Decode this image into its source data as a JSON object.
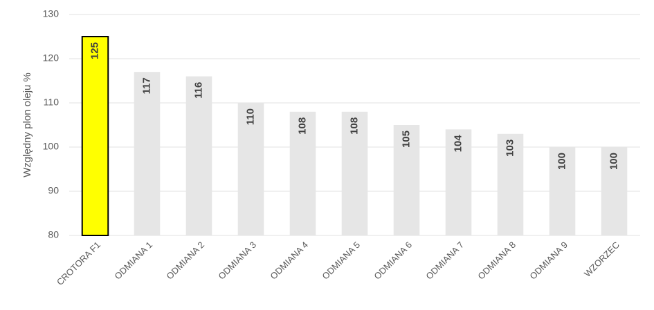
{
  "chart_data": {
    "type": "bar",
    "ylabel": "Względny plon oleju %",
    "categories": [
      "CROTORA F1",
      "ODMIANA 1",
      "ODMIANA 2",
      "ODMIANA 3",
      "ODMIANA 4",
      "ODMIANA 5",
      "ODMIANA 6",
      "ODMIANA 7",
      "ODMIANA 8",
      "ODMIANA 9",
      "WZORZEC"
    ],
    "values": [
      125,
      117,
      116,
      110,
      108,
      108,
      105,
      104,
      103,
      100,
      100
    ],
    "colors": [
      "#ffff00",
      "#e6e6e6",
      "#e6e6e6",
      "#e6e6e6",
      "#e6e6e6",
      "#e6e6e6",
      "#e6e6e6",
      "#e6e6e6",
      "#e6e6e6",
      "#e6e6e6",
      "#e6e6e6"
    ],
    "edgecolors": [
      "#000000",
      "none",
      "none",
      "none",
      "none",
      "none",
      "none",
      "none",
      "none",
      "none",
      "none"
    ],
    "ylim": [
      80,
      130
    ],
    "yticks": [
      80,
      90,
      100,
      110,
      120,
      130
    ],
    "grid": true
  }
}
